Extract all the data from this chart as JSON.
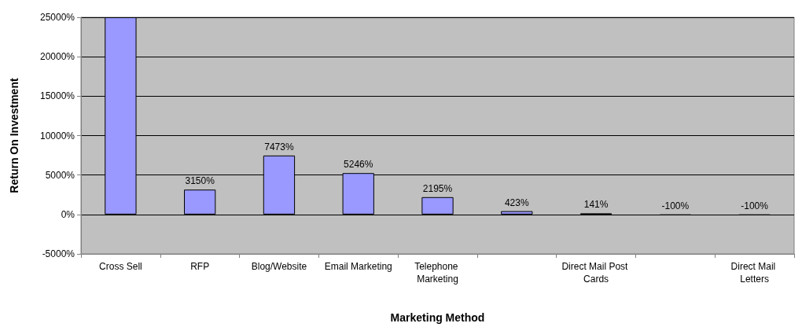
{
  "chart_data": {
    "type": "bar",
    "xlabel": "Marketing Method",
    "ylabel": "Return On Investment",
    "categories": [
      "Cross Sell",
      "RFP",
      "Blog/Website",
      "Email Marketing",
      "Telephone Marketing",
      null,
      "Direct Mail Post Cards",
      null,
      "Direct Mail Letters"
    ],
    "values": [
      25000,
      3150,
      7473,
      5246,
      2195,
      423,
      141,
      -100,
      -100
    ],
    "value_labels": [
      null,
      "3150%",
      "7473%",
      "5246%",
      "2195%",
      "423%",
      "141%",
      "-100%",
      "-100%"
    ],
    "color": "#9999ff",
    "ylim": [
      -5000,
      25000
    ],
    "yticks": [
      {
        "value": -5000,
        "label": "-5000%"
      },
      {
        "value": 0,
        "label": "0%"
      },
      {
        "value": 5000,
        "label": "5000%"
      },
      {
        "value": 10000,
        "label": "10000%"
      },
      {
        "value": 15000,
        "label": "15000%"
      },
      {
        "value": 20000,
        "label": "20000%"
      },
      {
        "value": 25000,
        "label": "25000%"
      }
    ],
    "grid": "y"
  }
}
